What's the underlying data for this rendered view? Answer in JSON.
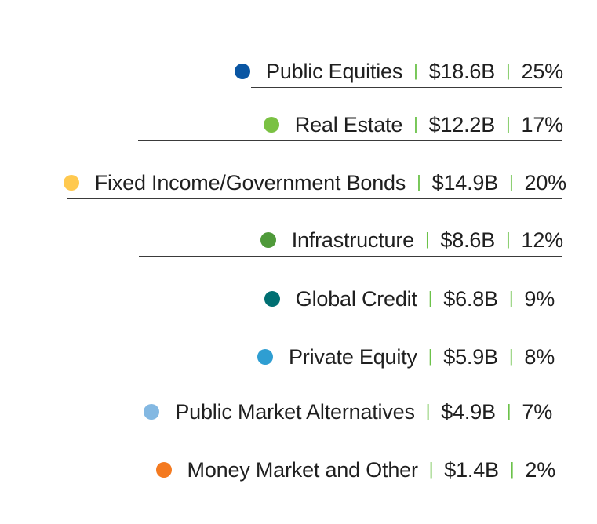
{
  "colors": {
    "separator": "#6cc24a",
    "rule": "#3a3a3a"
  },
  "chart_data": {
    "type": "table",
    "columns": [
      "asset_class",
      "value",
      "percent"
    ],
    "rows": [
      {
        "label": "Public Equities",
        "value_label": "$18.6B",
        "percent_label": "25%",
        "value_billions": 18.6,
        "percent": 25,
        "color": "#0a56a3",
        "icon": "dark-blue-dot-icon"
      },
      {
        "label": "Real Estate",
        "value_label": "$12.2B",
        "percent_label": "17%",
        "value_billions": 12.2,
        "percent": 17,
        "color": "#7ac143",
        "icon": "light-green-dot-icon"
      },
      {
        "label": "Fixed Income/Government Bonds",
        "value_label": "$14.9B",
        "percent_label": "20%",
        "value_billions": 14.9,
        "percent": 20,
        "color": "#ffc94f",
        "icon": "yellow-dot-icon"
      },
      {
        "label": "Infrastructure",
        "value_label": "$8.6B",
        "percent_label": "12%",
        "value_billions": 8.6,
        "percent": 12,
        "color": "#4f9a3a",
        "icon": "green-dot-icon"
      },
      {
        "label": "Global Credit",
        "value_label": "$6.8B",
        "percent_label": "9%",
        "value_billions": 6.8,
        "percent": 9,
        "color": "#006f72",
        "icon": "teal-dot-icon"
      },
      {
        "label": "Private Equity",
        "value_label": "$5.9B",
        "percent_label": "8%",
        "value_billions": 5.9,
        "percent": 8,
        "color": "#2f9ed2",
        "icon": "blue-dot-icon"
      },
      {
        "label": "Public Market Alternatives",
        "value_label": "$4.9B",
        "percent_label": "7%",
        "value_billions": 4.9,
        "percent": 7,
        "color": "#83b8e2",
        "icon": "light-blue-dot-icon"
      },
      {
        "label": "Money Market and Other",
        "value_label": "$1.4B",
        "percent_label": "2%",
        "value_billions": 1.4,
        "percent": 2,
        "color": "#f47a20",
        "icon": "orange-dot-icon"
      }
    ]
  }
}
